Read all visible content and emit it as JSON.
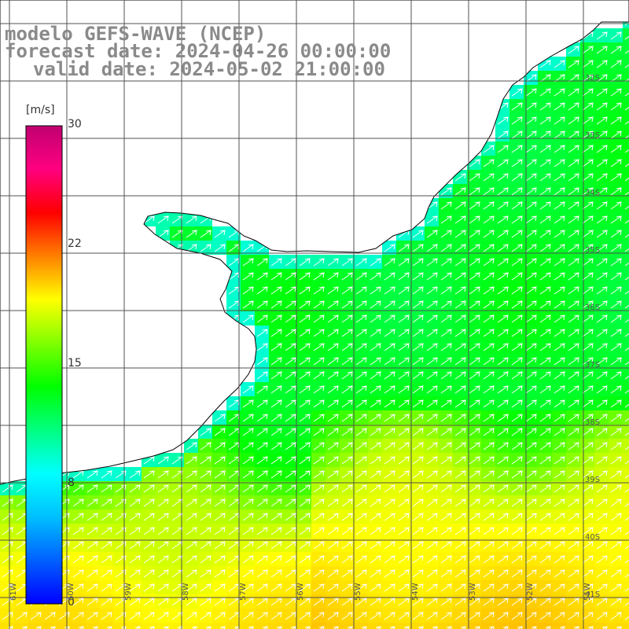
{
  "title": {
    "line1": "modelo GEFS-WAVE (NCEP)",
    "line2": "forecast date: 2024-04-26 00:00:00",
    "line3": "valid date: 2024-05-02 21:00:00"
  },
  "colorbar": {
    "unit": "[m/s]",
    "ticks": [
      "30",
      "22",
      "15",
      "8",
      "0"
    ],
    "range": [
      0,
      30
    ],
    "colors": [
      "#0000ff",
      "#0060ff",
      "#00c0ff",
      "#00ffff",
      "#00ff80",
      "#00ff00",
      "#80ff00",
      "#ffff00",
      "#ff8000",
      "#ff0000",
      "#ff0080",
      "#c00070"
    ]
  },
  "grid": {
    "lat_labels": [
      "32S",
      "33S",
      "34S",
      "35S",
      "36S",
      "37S",
      "38S",
      "39S",
      "40S",
      "41S"
    ],
    "lon_labels": [
      "61W",
      "60W",
      "59W",
      "58W",
      "57W",
      "56W",
      "55W",
      "54W",
      "53W",
      "52W",
      "51W"
    ]
  },
  "colors": {
    "land": "#ffffff",
    "coast": "#000000",
    "grid": "#505050",
    "title": "#8a8a8a",
    "arrows": "#ffffff"
  },
  "chart_data": {
    "type": "heatmap",
    "variable": "wind speed",
    "units": "m/s",
    "region_note": "",
    "lat_range": [
      -41,
      -31
    ],
    "lon_range": [
      -61,
      -50
    ],
    "value_bands": [
      {
        "zone": "near coast",
        "approx_value": 9
      },
      {
        "zone": "central shelf",
        "approx_value": 13
      },
      {
        "zone": "south offshore",
        "approx_value": 16
      }
    ],
    "vector_direction": "north-east"
  }
}
